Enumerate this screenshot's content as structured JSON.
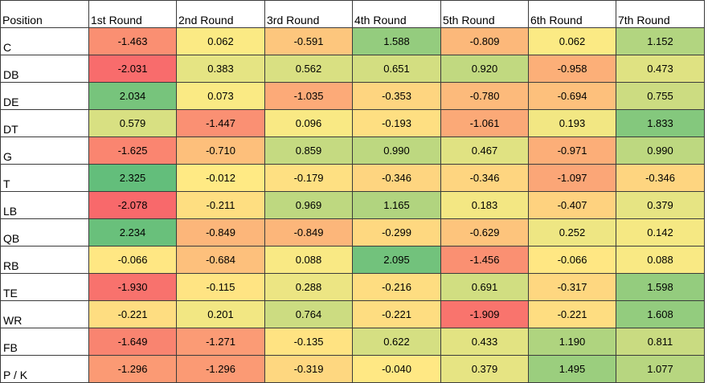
{
  "chart_data": {
    "type": "heatmap",
    "corner_label": "Position",
    "columns": [
      "1st Round",
      "2nd Round",
      "3rd Round",
      "4th Round",
      "5th Round",
      "6th Round",
      "7th Round"
    ],
    "rows": [
      "C",
      "DB",
      "DE",
      "DT",
      "G",
      "T",
      "LB",
      "QB",
      "RB",
      "TE",
      "WR",
      "FB",
      "P / K"
    ],
    "values": [
      [
        "-1.463",
        "0.062",
        "-0.591",
        "1.588",
        "-0.809",
        "0.062",
        "1.152"
      ],
      [
        "-2.031",
        "0.383",
        "0.562",
        "0.651",
        "0.920",
        "-0.958",
        "0.473"
      ],
      [
        "2.034",
        "0.073",
        "-1.035",
        "-0.353",
        "-0.780",
        "-0.694",
        "0.755"
      ],
      [
        "0.579",
        "-1.447",
        "0.096",
        "-0.193",
        "-1.061",
        "0.193",
        "1.833"
      ],
      [
        "-1.625",
        "-0.710",
        "0.859",
        "0.990",
        "0.467",
        "-0.971",
        "0.990"
      ],
      [
        "2.325",
        "-0.012",
        "-0.179",
        "-0.346",
        "-0.346",
        "-1.097",
        "-0.346"
      ],
      [
        "-2.078",
        "-0.211",
        "0.969",
        "1.165",
        "0.183",
        "-0.407",
        "0.379"
      ],
      [
        "2.234",
        "-0.849",
        "-0.849",
        "-0.299",
        "-0.629",
        "0.252",
        "0.142"
      ],
      [
        "-0.066",
        "-0.684",
        "0.088",
        "2.095",
        "-1.456",
        "-0.066",
        "0.088"
      ],
      [
        "-1.930",
        "-0.115",
        "0.288",
        "-0.216",
        "0.691",
        "-0.317",
        "1.598"
      ],
      [
        "-0.221",
        "0.201",
        "0.764",
        "-0.221",
        "-1.909",
        "-0.221",
        "1.608"
      ],
      [
        "-1.649",
        "-1.271",
        "-0.135",
        "0.622",
        "0.433",
        "1.190",
        "0.811"
      ],
      [
        "-1.296",
        "-1.296",
        "-0.319",
        "-0.040",
        "0.379",
        "1.495",
        "1.077"
      ]
    ],
    "color_scale": {
      "low": "#F8696B",
      "mid": "#FFEB84",
      "high": "#63BE7B",
      "min": -2.078,
      "max": 2.325
    }
  }
}
